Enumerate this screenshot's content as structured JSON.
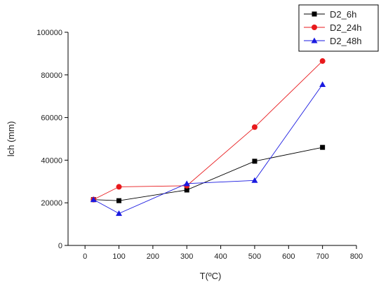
{
  "chart_data": {
    "type": "line",
    "title": "",
    "xlabel": "T(ºC)",
    "ylabel": "lch (mm)",
    "xlim": [
      -50,
      800
    ],
    "ylim": [
      0,
      100000
    ],
    "xticks": [
      0,
      100,
      200,
      300,
      400,
      500,
      600,
      700,
      800
    ],
    "yticks": [
      0,
      20000,
      40000,
      60000,
      80000,
      100000
    ],
    "grid": false,
    "legend_position": "top-right",
    "series": [
      {
        "name": "D2_6h",
        "color": "#000000",
        "marker": "square",
        "x": [
          25,
          100,
          300,
          500,
          700
        ],
        "y": [
          21500,
          21000,
          26000,
          39500,
          46000
        ]
      },
      {
        "name": "D2_24h",
        "color": "#e8191c",
        "marker": "circle",
        "x": [
          25,
          100,
          300,
          500,
          700
        ],
        "y": [
          21500,
          27500,
          28000,
          55500,
          86500
        ]
      },
      {
        "name": "D2_48h",
        "color": "#1a1ae0",
        "marker": "triangle",
        "x": [
          25,
          100,
          300,
          500,
          700
        ],
        "y": [
          21500,
          15000,
          29000,
          30500,
          75500
        ]
      }
    ]
  }
}
